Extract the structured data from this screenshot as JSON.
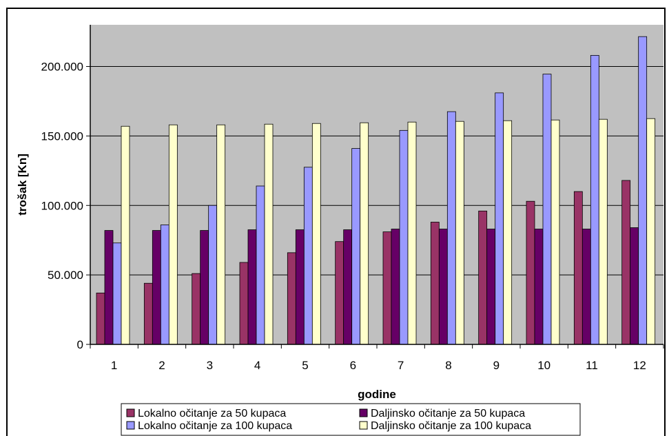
{
  "chart_data": {
    "type": "bar",
    "title": "",
    "xlabel": "godine",
    "ylabel": "trošak [Kn]",
    "ylim": [
      0,
      230000
    ],
    "yticks": [
      0,
      50000,
      100000,
      150000,
      200000
    ],
    "ytick_labels": [
      "0",
      "50.000",
      "100.000",
      "150.000",
      "200.000"
    ],
    "categories": [
      "1",
      "2",
      "3",
      "4",
      "5",
      "6",
      "7",
      "8",
      "9",
      "10",
      "11",
      "12"
    ],
    "grid": true,
    "legend_position": "bottom",
    "series": [
      {
        "name": "Lokalno očitanje za 50 kupaca",
        "color": "#993366",
        "values": [
          37000,
          44000,
          51000,
          59000,
          66000,
          74000,
          81000,
          88000,
          96000,
          103000,
          110000,
          118000
        ]
      },
      {
        "name": "Daljinsko očitanje za 50 kupaca",
        "color": "#660066",
        "values": [
          82000,
          82000,
          82000,
          82500,
          82500,
          82500,
          83000,
          83000,
          83000,
          83000,
          83000,
          84000
        ]
      },
      {
        "name": "Lokalno očitanje za 100 kupaca",
        "color": "#9999ff",
        "values": [
          73000,
          86000,
          100000,
          114000,
          127500,
          141000,
          154000,
          167500,
          181000,
          194500,
          208000,
          221500
        ]
      },
      {
        "name": "Daljinsko očitanje za 100 kupaca",
        "color": "#ffffcc",
        "values": [
          157000,
          158000,
          158000,
          158500,
          159000,
          159500,
          160000,
          160500,
          161000,
          161500,
          162000,
          162500
        ]
      }
    ],
    "plot_background": "#c0c0c0"
  }
}
